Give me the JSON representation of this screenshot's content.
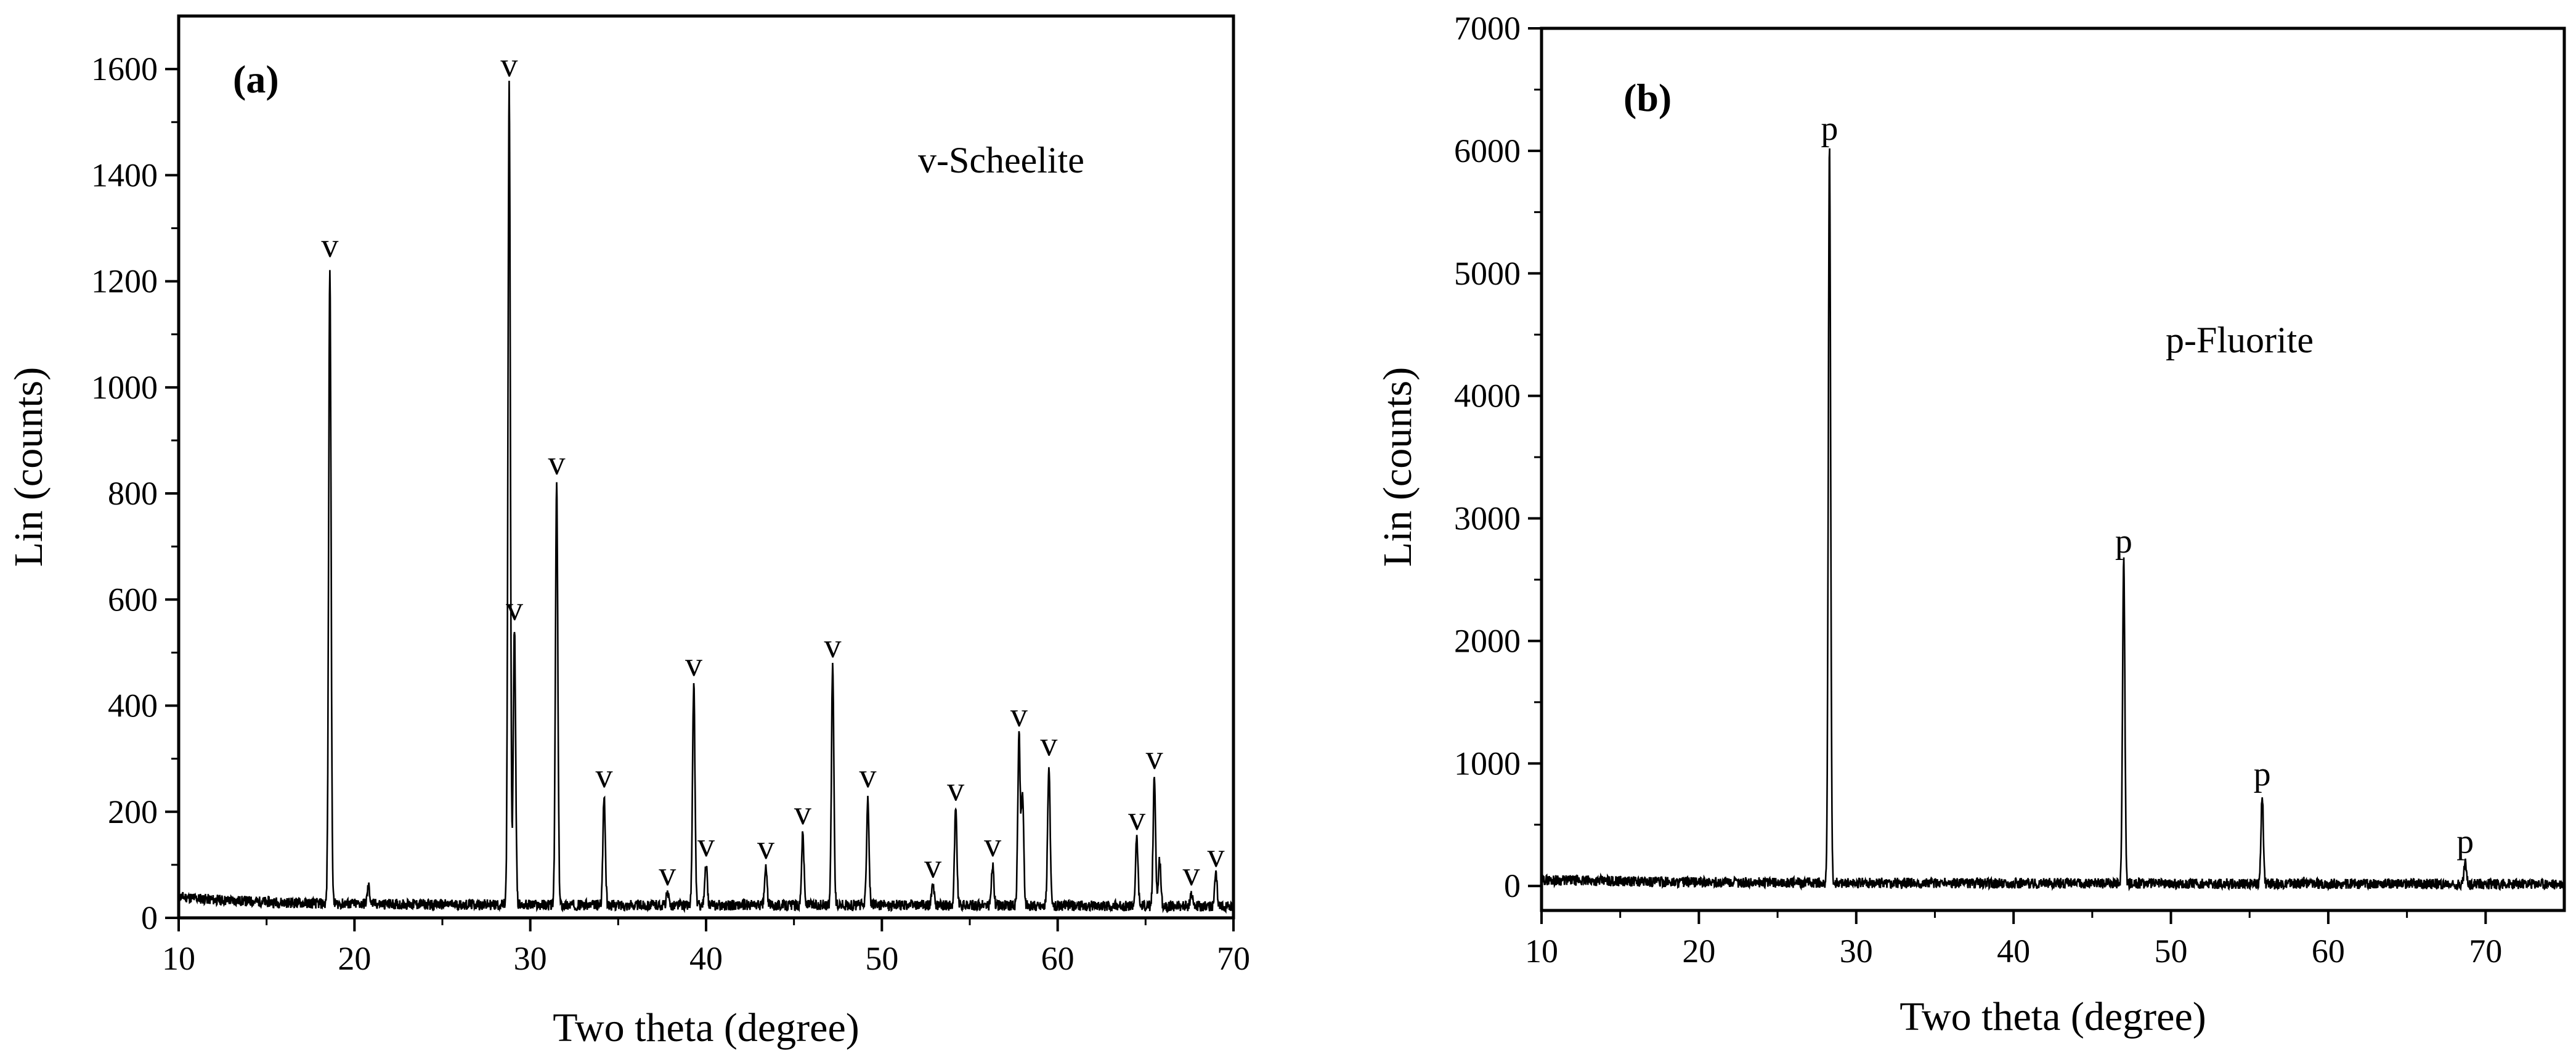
{
  "chart_data": [
    {
      "type": "line",
      "panel_label": "(a)",
      "legend_text": "v-Scheelite",
      "xlabel": "Two theta (degree)",
      "ylabel": "Lin (counts)",
      "xlim": [
        10,
        70
      ],
      "ylim": [
        0,
        1700
      ],
      "x_ticks": [
        10,
        20,
        30,
        40,
        50,
        60,
        70
      ],
      "y_ticks": [
        0,
        200,
        400,
        600,
        800,
        1000,
        1200,
        1400,
        1600
      ],
      "baseline": [
        [
          10,
          40
        ],
        [
          12,
          34
        ],
        [
          15,
          30
        ],
        [
          18,
          27
        ],
        [
          25,
          25
        ],
        [
          35,
          24
        ],
        [
          50,
          24
        ],
        [
          60,
          23
        ],
        [
          70,
          22
        ]
      ],
      "peaks": [
        {
          "x": 18.6,
          "y": 1230,
          "marker": "v"
        },
        {
          "x": 20.8,
          "y": 60,
          "marker": ""
        },
        {
          "x": 28.8,
          "y": 1570,
          "marker": "v"
        },
        {
          "x": 29.1,
          "y": 545,
          "marker": "v"
        },
        {
          "x": 31.5,
          "y": 820,
          "marker": "v"
        },
        {
          "x": 34.2,
          "y": 230,
          "marker": "v"
        },
        {
          "x": 37.8,
          "y": 45,
          "marker": "v"
        },
        {
          "x": 39.3,
          "y": 440,
          "marker": "v"
        },
        {
          "x": 40.0,
          "y": 100,
          "marker": "v"
        },
        {
          "x": 43.4,
          "y": 95,
          "marker": "v"
        },
        {
          "x": 45.5,
          "y": 160,
          "marker": "v"
        },
        {
          "x": 47.2,
          "y": 475,
          "marker": "v"
        },
        {
          "x": 49.2,
          "y": 230,
          "marker": "v"
        },
        {
          "x": 52.9,
          "y": 60,
          "marker": "v"
        },
        {
          "x": 54.2,
          "y": 205,
          "marker": "v"
        },
        {
          "x": 56.3,
          "y": 100,
          "marker": "v"
        },
        {
          "x": 57.8,
          "y": 345,
          "marker": "v"
        },
        {
          "x": 58.0,
          "y": 235,
          "marker": ""
        },
        {
          "x": 59.5,
          "y": 290,
          "marker": "v"
        },
        {
          "x": 64.5,
          "y": 150,
          "marker": "v"
        },
        {
          "x": 65.5,
          "y": 265,
          "marker": "v"
        },
        {
          "x": 65.8,
          "y": 110,
          "marker": ""
        },
        {
          "x": 67.6,
          "y": 45,
          "marker": "v"
        },
        {
          "x": 69.0,
          "y": 80,
          "marker": "v"
        }
      ]
    },
    {
      "type": "line",
      "panel_label": "(b)",
      "legend_text": "p-Fluorite",
      "xlabel": "Two theta (degree)",
      "ylabel": "Lin (counts)",
      "xlim": [
        10,
        75
      ],
      "ylim": [
        -200,
        7000
      ],
      "x_ticks": [
        10,
        20,
        30,
        40,
        50,
        60,
        70
      ],
      "y_ticks": [
        0,
        1000,
        2000,
        3000,
        4000,
        5000,
        6000,
        7000
      ],
      "baseline": [
        [
          10,
          50
        ],
        [
          12,
          45
        ],
        [
          20,
          30
        ],
        [
          30,
          25
        ],
        [
          50,
          20
        ],
        [
          75,
          15
        ]
      ],
      "peaks": [
        {
          "x": 28.3,
          "y": 6020,
          "marker": "p"
        },
        {
          "x": 47.0,
          "y": 2650,
          "marker": "p"
        },
        {
          "x": 55.8,
          "y": 750,
          "marker": "p"
        },
        {
          "x": 58.5,
          "y": 40,
          "marker": ""
        },
        {
          "x": 68.7,
          "y": 200,
          "marker": "p"
        }
      ]
    }
  ]
}
